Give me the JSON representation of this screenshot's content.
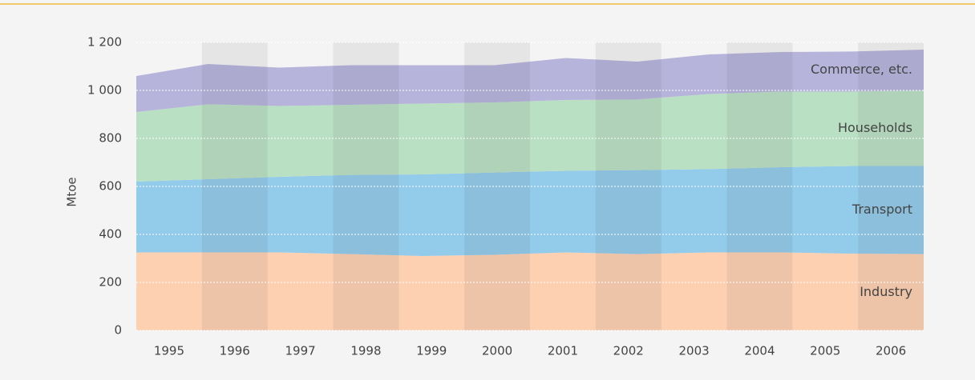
{
  "chart_data": {
    "type": "stacked_area",
    "y_label": "Mtoe",
    "categories": [
      "1995",
      "1996",
      "1997",
      "1998",
      "1999",
      "2000",
      "2001",
      "2002",
      "2003",
      "2004",
      "2005",
      "2006"
    ],
    "series": [
      {
        "name": "Industry",
        "color": "#fdd0b1",
        "values": [
          325,
          325,
          325,
          318,
          310,
          315,
          325,
          318,
          325,
          325,
          320,
          318
        ]
      },
      {
        "name": "Transport",
        "color": "#93cbea",
        "values": [
          295,
          305,
          315,
          330,
          340,
          343,
          340,
          350,
          347,
          355,
          365,
          367
        ]
      },
      {
        "name": "Households",
        "color": "#b9e0c3",
        "values": [
          290,
          312,
          295,
          292,
          295,
          292,
          295,
          294,
          313,
          315,
          310,
          315
        ]
      },
      {
        "name": "Commerce, etc.",
        "color": "#b7b4dc",
        "values": [
          150,
          168,
          160,
          165,
          160,
          155,
          175,
          158,
          165,
          165,
          167,
          170
        ]
      }
    ],
    "ylim": [
      0,
      1200
    ],
    "yticks": [
      0,
      200,
      400,
      600,
      800,
      {
        "value": 1000,
        "label": "1 000"
      },
      {
        "value": 1200,
        "label": "1 200"
      }
    ],
    "grid": true
  }
}
